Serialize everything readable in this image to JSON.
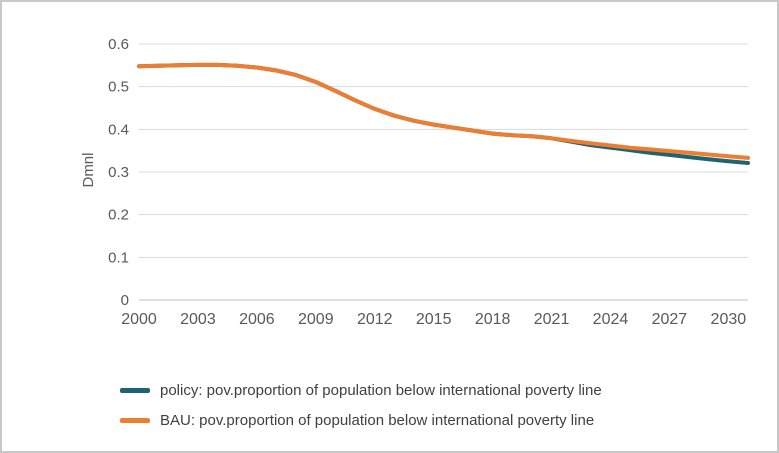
{
  "frame": {
    "background": "#ffffff",
    "border_color": "#c8c8c8"
  },
  "chart_data": {
    "type": "line",
    "title": "",
    "xlabel": "",
    "ylabel": "Dmnl",
    "xlim": [
      2000,
      2031
    ],
    "ylim": [
      0,
      0.6
    ],
    "x_ticks": [
      2000,
      2003,
      2006,
      2009,
      2012,
      2015,
      2018,
      2021,
      2024,
      2027,
      2030
    ],
    "y_ticks": [
      0,
      0.1,
      0.2,
      0.3,
      0.4,
      0.5,
      0.6
    ],
    "grid": "horizontal",
    "grid_color": "#d9d9d9",
    "axis_color": "#bfbfbf",
    "tick_label_color": "#595959",
    "legend_position": "bottom-left",
    "x": [
      2000,
      2001,
      2002,
      2003,
      2004,
      2005,
      2006,
      2007,
      2008,
      2009,
      2010,
      2011,
      2012,
      2013,
      2014,
      2015,
      2016,
      2017,
      2018,
      2019,
      2020,
      2021,
      2022,
      2023,
      2024,
      2025,
      2026,
      2027,
      2028,
      2029,
      2030,
      2031
    ],
    "series": [
      {
        "name": "policy: pov.proportion of population below international poverty line",
        "color": "#1f6373",
        "values": [
          0.548,
          0.549,
          0.55,
          0.551,
          0.551,
          0.549,
          0.545,
          0.538,
          0.527,
          0.511,
          0.49,
          0.468,
          0.448,
          0.432,
          0.42,
          0.411,
          0.404,
          0.397,
          0.39,
          0.386,
          0.384,
          0.379,
          0.371,
          0.363,
          0.357,
          0.351,
          0.345,
          0.34,
          0.335,
          0.33,
          0.325,
          0.321
        ]
      },
      {
        "name": "BAU: pov.proportion of population below international poverty line",
        "color": "#ed7d31",
        "values": [
          0.548,
          0.549,
          0.55,
          0.551,
          0.551,
          0.549,
          0.545,
          0.538,
          0.527,
          0.511,
          0.49,
          0.468,
          0.448,
          0.432,
          0.42,
          0.411,
          0.404,
          0.397,
          0.39,
          0.386,
          0.384,
          0.379,
          0.373,
          0.367,
          0.362,
          0.357,
          0.353,
          0.349,
          0.345,
          0.341,
          0.337,
          0.333
        ]
      }
    ]
  }
}
